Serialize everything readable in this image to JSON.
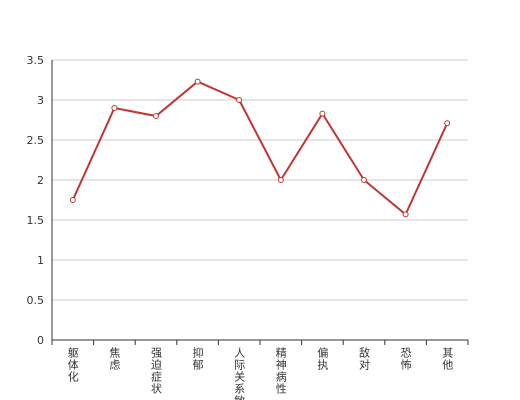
{
  "chart_data": {
    "type": "line",
    "categories": [
      "躯体化",
      "焦虑",
      "强迫症状",
      "抑郁",
      "人际关系敏感",
      "精神病性",
      "偏执",
      "敌对",
      "恐怖",
      "其他"
    ],
    "series": [
      {
        "color": "#c23531",
        "values": [
          1.75,
          2.9,
          2.8,
          3.23,
          3.0,
          2.0,
          2.83,
          2.0,
          1.57,
          2.71
        ]
      }
    ],
    "ylim": [
      0,
      3.5
    ],
    "yticks": [
      0,
      0.5,
      1,
      1.5,
      2,
      2.5,
      3,
      3.5
    ],
    "grid": true
  }
}
